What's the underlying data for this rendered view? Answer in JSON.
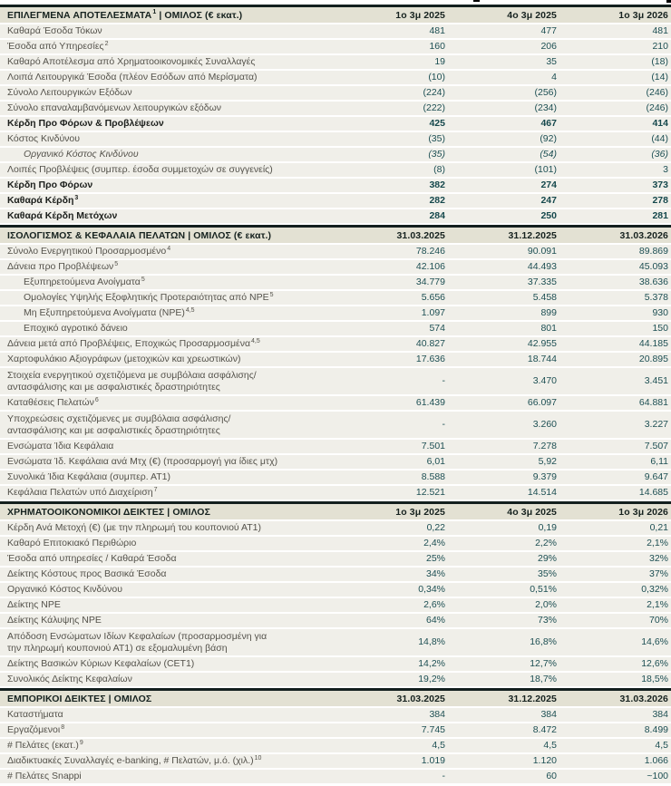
{
  "colors": {
    "row_background": "#f0efe9",
    "header_background": "#e3e1d3",
    "section_border": "#131f1e",
    "label_text": "#54524b",
    "value_text": "#1d4f53",
    "header_text": "#16221f"
  },
  "sections": [
    {
      "header": {
        "pre": "ΕΠΙΛΕΓΜΕΝΑ ΑΠΟΤΕΛΕΣΜΑΤΑ",
        "sup": "1",
        "post": " | ΟΜΙΛΟΣ (€ εκατ.)",
        "cols": [
          "1ο 3μ 2025",
          "4ο 3μ 2025",
          "1ο 3μ 2026"
        ]
      },
      "rows": [
        {
          "label": "Καθαρά Έσοδα Τόκων",
          "values": [
            "481",
            "477",
            "481"
          ]
        },
        {
          "label": "Έσοδα από Υπηρεσίες",
          "sup": "2",
          "values": [
            "160",
            "206",
            "210"
          ]
        },
        {
          "label": "Καθαρό Αποτέλεσμα από Χρηματοοικονομικές Συναλλαγές",
          "values": [
            "19",
            "35",
            "(18)"
          ]
        },
        {
          "label": "Λοιπά Λειτουργικά Έσοδα (πλέον Εσόδων από Μερίσματα)",
          "values": [
            "(10)",
            "4",
            "(14)"
          ]
        },
        {
          "label": "Σύνολο Λειτουργικών Εξόδων",
          "values": [
            "(224)",
            "(256)",
            "(246)"
          ]
        },
        {
          "label": "Σύνολο επαναλαμβανόμενων λειτουργικών εξόδων",
          "values": [
            "(222)",
            "(234)",
            "(246)"
          ]
        },
        {
          "label": "Κέρδη Προ Φόρων & Προβλέψεων",
          "style": "bold",
          "values": [
            "425",
            "467",
            "414"
          ]
        },
        {
          "label": "Κόστος Κινδύνου",
          "values": [
            "(35)",
            "(92)",
            "(44)"
          ]
        },
        {
          "label": "Οργανικό Κόστος Κινδύνου",
          "style": "italic",
          "indent": true,
          "values": [
            "(35)",
            "(54)",
            "(36)"
          ]
        },
        {
          "label": "Λοιπές Προβλέψεις (συμπερ. έσοδα συμμετοχών σε συγγενείς)",
          "values": [
            "(8)",
            "(101)",
            "3"
          ]
        },
        {
          "label": "Κέρδη Προ Φόρων",
          "style": "bold",
          "values": [
            "382",
            "274",
            "373"
          ]
        },
        {
          "label": "Καθαρά Κέρδη",
          "sup": "3",
          "style": "bold",
          "values": [
            "282",
            "247",
            "278"
          ]
        },
        {
          "label": "Καθαρά Κέρδη Μετόχων",
          "style": "bold",
          "values": [
            "284",
            "250",
            "281"
          ]
        }
      ]
    },
    {
      "header": {
        "pre": "ΙΣΟΛΟΓΙΣΜΟΣ & ΚΕΦΑΛΑΙΑ ΠΕΛΑΤΩΝ | ΟΜΙΛΟΣ (€ εκατ.)",
        "sup": "",
        "post": "",
        "cols": [
          "31.03.2025",
          "31.12.2025",
          "31.03.2026"
        ]
      },
      "rows": [
        {
          "label": "Σύνολο Ενεργητικού Προσαρμοσμένο",
          "sup": "4",
          "values": [
            "78.246",
            "90.091",
            "89.869"
          ]
        },
        {
          "label": "Δάνεια προ Προβλέψεων",
          "sup": "5",
          "values": [
            "42.106",
            "44.493",
            "45.093"
          ]
        },
        {
          "label": "Εξυπηρετούμενα Ανοίγματα",
          "sup": "5",
          "indent": true,
          "values": [
            "34.779",
            "37.335",
            "38.636"
          ]
        },
        {
          "label": "Ομολογίες Υψηλής Εξοφλητικής Προτεραιότητας από NPE",
          "sup": "5",
          "indent": true,
          "values": [
            "5.656",
            "5.458",
            "5.378"
          ]
        },
        {
          "label": "Μη Εξυπηρετούμενα Ανοίγματα (NPE)",
          "sup": "4,5",
          "indent": true,
          "values": [
            "1.097",
            "899",
            "930"
          ]
        },
        {
          "label": "Εποχικό αγροτικό δάνειο",
          "indent": true,
          "values": [
            "574",
            "801",
            "150"
          ]
        },
        {
          "label": "Δάνεια μετά από Προβλέψεις, Εποχικώς Προσαρμοσμένα",
          "sup": "4,5",
          "values": [
            "40.827",
            "42.955",
            "44.185"
          ]
        },
        {
          "label": "Χαρτοφυλάκιο Αξιογράφων (μετοχικών και χρεωστικών)",
          "values": [
            "17.636",
            "18.744",
            "20.895"
          ]
        },
        {
          "label": "Στοιχεία ενεργητικού σχετιζόμενα με συμβόλαια ασφάλισης/αντασφάλισης και με ασφαλιστικές δραστηριότητες",
          "wrap": true,
          "values": [
            "-",
            "3.470",
            "3.451"
          ]
        },
        {
          "label": "Καταθέσεις Πελατών",
          "sup": "6",
          "values": [
            "61.439",
            "66.097",
            "64.881"
          ]
        },
        {
          "label": "Υποχρεώσεις σχετιζόμενες με συμβόλαια ασφάλισης/αντασφάλισης και με ασφαλιστικές δραστηριότητες",
          "wrap": true,
          "values": [
            "-",
            "3.260",
            "3.227"
          ]
        },
        {
          "label": "Ενσώματα Ίδια Κεφάλαια",
          "values": [
            "7.501",
            "7.278",
            "7.507"
          ]
        },
        {
          "label": "Ενσώματα Ίδ. Κεφάλαια ανά Μτχ (€) (προσαρμογή για ίδιες μτχ)",
          "values": [
            "6,01",
            "5,92",
            "6,11"
          ]
        },
        {
          "label": "Συνολικά Ίδια Κεφάλαια (συμπερ. ΑΤ1)",
          "values": [
            "8.588",
            "9.379",
            "9.647"
          ]
        },
        {
          "label": "Κεφάλαια Πελατών υπό Διαχείριση",
          "sup": "7",
          "values": [
            "12.521",
            "14.514",
            "14.685"
          ]
        }
      ]
    },
    {
      "header": {
        "pre": "ΧΡΗΜΑΤΟΟΙΚΟΝΟΜΙΚΟΙ ΔΕΙΚΤΕΣ | ΟΜΙΛΟΣ",
        "sup": "",
        "post": "",
        "cols": [
          "1ο 3μ 2025",
          "4ο 3μ 2025",
          "1ο 3μ 2026"
        ]
      },
      "rows": [
        {
          "label": "Κέρδη Ανά Μετοχή (€) (με την πληρωμή του κουπονιού ΑΤ1)",
          "values": [
            "0,22",
            "0,19",
            "0,21"
          ]
        },
        {
          "label": "Καθαρό Επιτοκιακό Περιθώριο",
          "values": [
            "2,4%",
            "2,2%",
            "2,1%"
          ]
        },
        {
          "label": "Έσοδα από υπηρεσίες / Καθαρά Έσοδα",
          "values": [
            "25%",
            "29%",
            "32%"
          ]
        },
        {
          "label": "Δείκτης Κόστους προς Βασικά Έσοδα",
          "values": [
            "34%",
            "35%",
            "37%"
          ]
        },
        {
          "label": "Οργανικό Κόστος Κινδύνου",
          "values": [
            "0,34%",
            "0,51%",
            "0,32%"
          ]
        },
        {
          "label": "Δείκτης NPE",
          "values": [
            "2,6%",
            "2,0%",
            "2,1%"
          ]
        },
        {
          "label": "Δείκτης Κάλυψης NPE",
          "values": [
            "64%",
            "73%",
            "70%"
          ]
        },
        {
          "label": "Απόδοση Ενσώματων Ιδίων Κεφαλαίων (προσαρμοσμένη για την πληρωμή κουπονιού ΑΤ1) σε εξομαλυμένη βάση",
          "wrap": true,
          "values": [
            "14,8%",
            "16,8%",
            "14,6%"
          ]
        },
        {
          "label": "Δείκτης Βασικών Κύριων Κεφαλαίων (CET1)",
          "values": [
            "14,2%",
            "12,7%",
            "12,6%"
          ]
        },
        {
          "label": "Συνολικός Δείκτης Κεφαλαίων",
          "values": [
            "19,2%",
            "18,7%",
            "18,5%"
          ]
        }
      ]
    },
    {
      "header": {
        "pre": "ΕΜΠΟΡΙΚΟΙ ΔΕΙΚΤΕΣ | ΟΜΙΛΟΣ",
        "sup": "",
        "post": "",
        "cols": [
          "31.03.2025",
          "31.12.2025",
          "31.03.2026"
        ]
      },
      "rows": [
        {
          "label": "Καταστήματα",
          "values": [
            "384",
            "384",
            "384"
          ]
        },
        {
          "label": "Εργαζόμενοι",
          "sup": "8",
          "values": [
            "7.745",
            "8.472",
            "8.499"
          ]
        },
        {
          "label": "# Πελάτες (εκατ.)",
          "sup": "9",
          "values": [
            "4,5",
            "4,5",
            "4,5"
          ]
        },
        {
          "label": "Διαδικτυακές Συναλλαγές e-banking, # Πελατών, μ.ό. (χιλ.)",
          "sup": "10",
          "values": [
            "1.019",
            "1.120",
            "1.066"
          ]
        },
        {
          "label": "# Πελάτες Snappi",
          "values": [
            "-",
            "60",
            "~100"
          ]
        }
      ]
    }
  ]
}
